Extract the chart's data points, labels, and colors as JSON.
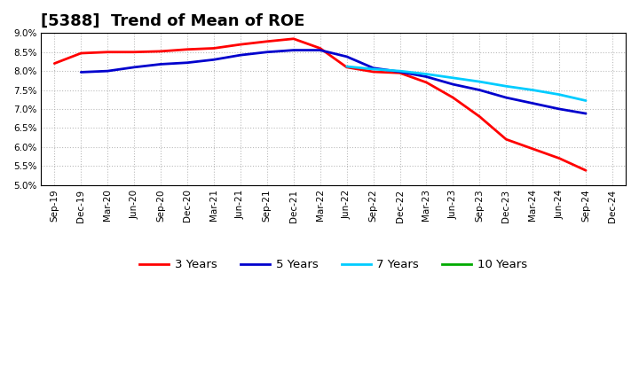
{
  "title": "[5388]  Trend of Mean of ROE",
  "x_labels": [
    "Sep-19",
    "Dec-19",
    "Mar-20",
    "Jun-20",
    "Sep-20",
    "Dec-20",
    "Mar-21",
    "Jun-21",
    "Sep-21",
    "Dec-21",
    "Mar-22",
    "Jun-22",
    "Sep-22",
    "Dec-22",
    "Mar-23",
    "Jun-23",
    "Sep-23",
    "Dec-23",
    "Mar-24",
    "Jun-24",
    "Sep-24",
    "Dec-24"
  ],
  "series": {
    "3 Years": {
      "color": "#ff0000",
      "values": [
        8.2,
        8.47,
        8.5,
        8.5,
        8.52,
        8.57,
        8.6,
        8.7,
        8.78,
        8.85,
        8.6,
        8.1,
        7.98,
        7.95,
        7.7,
        7.3,
        6.8,
        6.2,
        5.95,
        5.7,
        5.38,
        null
      ]
    },
    "5 Years": {
      "color": "#0000cd",
      "values": [
        null,
        7.97,
        8.0,
        8.1,
        8.18,
        8.22,
        8.3,
        8.42,
        8.5,
        8.55,
        8.55,
        8.38,
        8.08,
        7.98,
        7.85,
        7.65,
        7.5,
        7.3,
        7.15,
        7.0,
        6.88,
        null
      ]
    },
    "7 Years": {
      "color": "#00ccff",
      "values": [
        null,
        null,
        null,
        null,
        null,
        null,
        null,
        null,
        null,
        null,
        null,
        8.12,
        8.05,
        8.0,
        7.92,
        7.82,
        7.72,
        7.6,
        7.5,
        7.38,
        7.22,
        null
      ]
    },
    "10 Years": {
      "color": "#00aa00",
      "values": [
        null,
        null,
        null,
        null,
        null,
        null,
        null,
        null,
        null,
        null,
        null,
        null,
        null,
        null,
        null,
        null,
        null,
        null,
        null,
        null,
        null,
        null
      ]
    }
  },
  "ylim": [
    5.0,
    9.0
  ],
  "yticks": [
    5.0,
    5.5,
    6.0,
    6.5,
    7.0,
    7.5,
    8.0,
    8.5,
    9.0
  ],
  "background_color": "#ffffff",
  "grid_color": "#aaaaaa",
  "title_fontsize": 13,
  "legend_entries": [
    "3 Years",
    "5 Years",
    "7 Years",
    "10 Years"
  ],
  "legend_colors": [
    "#ff0000",
    "#0000cd",
    "#00ccff",
    "#00aa00"
  ]
}
